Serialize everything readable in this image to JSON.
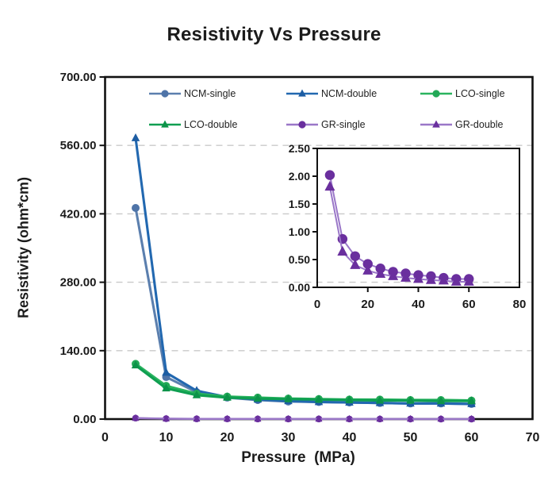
{
  "title": "Resistivity Vs Pressure",
  "axes": {
    "x_title": "Pressure  (MPa)",
    "y_title": "Resistivity (ohm*cm)"
  },
  "chart_data": {
    "type": "line",
    "title": "Resistivity Vs Pressure",
    "xlabel": "Pressure (MPa)",
    "ylabel": "Resistivity (ohm*cm)",
    "legend_position": "top-inside, two rows, three columns",
    "grid": "horizontal dashed gridlines",
    "main_axis": {
      "xlim": [
        0,
        70
      ],
      "ylim": [
        0,
        700
      ],
      "x_tick_values": [
        0,
        10,
        20,
        30,
        40,
        50,
        60,
        70
      ],
      "x_tick_labels": [
        "0",
        "10",
        "20",
        "30",
        "40",
        "50",
        "60",
        "70"
      ],
      "y_tick_values": [
        0,
        140,
        280,
        420,
        560,
        700
      ],
      "y_tick_labels": [
        "0.00",
        "140.00",
        "280.00",
        "420.00",
        "560.00",
        "700.00"
      ],
      "gridline_values": [
        140,
        280,
        420,
        560
      ]
    },
    "inset_axis": {
      "xlim": [
        0,
        80
      ],
      "ylim": [
        0,
        2.5
      ],
      "x_tick_values": [
        0,
        20,
        40,
        60,
        80
      ],
      "x_tick_labels": [
        "0",
        "20",
        "40",
        "60",
        "80"
      ],
      "y_tick_values": [
        0,
        0.5,
        1,
        1.5,
        2,
        2.5
      ],
      "y_tick_labels": [
        "0.00",
        "0.50",
        "1.00",
        "1.50",
        "2.00",
        "2.50"
      ],
      "series_shown": [
        "GR-single",
        "GR-double"
      ]
    },
    "pressures": [
      5,
      10,
      15,
      20,
      25,
      30,
      35,
      40,
      45,
      50,
      55,
      60
    ],
    "series": [
      {
        "name": "NCM-single",
        "marker": "circle",
        "color": "#5b7fae",
        "line_color": "#5b7fae",
        "marker_color": "#4f74a8",
        "in_inset": false,
        "values": [
          432,
          86,
          55,
          44,
          39,
          36,
          35,
          34,
          33,
          32,
          32,
          31
        ]
      },
      {
        "name": "NCM-double",
        "marker": "triangle",
        "color": "#2268b0",
        "line_color": "#2268b0",
        "marker_color": "#1d5da3",
        "in_inset": false,
        "values": [
          575,
          95,
          58,
          45,
          40,
          37,
          35,
          34,
          33,
          32,
          32,
          31
        ]
      },
      {
        "name": "LCO-single",
        "marker": "circle",
        "color": "#2ab45f",
        "line_color": "#2ab45f",
        "marker_color": "#23a957",
        "in_inset": false,
        "values": [
          113,
          68,
          52,
          46,
          44,
          42,
          41,
          40,
          40,
          39,
          39,
          38
        ]
      },
      {
        "name": "LCO-double",
        "marker": "triangle",
        "color": "#0f9f51",
        "line_color": "#0f9f51",
        "marker_color": "#0c9349",
        "in_inset": false,
        "values": [
          110,
          63,
          49,
          44,
          42,
          41,
          40,
          39,
          38,
          38,
          37,
          37
        ]
      },
      {
        "name": "GR-single",
        "marker": "circle",
        "color": "#7030a0",
        "line_color": "#9a77c8",
        "marker_color": "#6a2f9e",
        "in_inset": true,
        "values": [
          2.02,
          0.87,
          0.56,
          0.42,
          0.34,
          0.28,
          0.25,
          0.22,
          0.2,
          0.17,
          0.15,
          0.15
        ]
      },
      {
        "name": "GR-double",
        "marker": "triangle",
        "color": "#7030a0",
        "line_color": "#9a77c8",
        "marker_color": "#6a2f9e",
        "in_inset": true,
        "values": [
          1.81,
          0.64,
          0.4,
          0.3,
          0.24,
          0.2,
          0.17,
          0.15,
          0.13,
          0.12,
          0.1,
          0.1
        ]
      }
    ],
    "colors": {
      "grid": "#c9c9c9",
      "axis": "#111111",
      "text": "#1a1a1a",
      "background": "#ffffff"
    }
  }
}
